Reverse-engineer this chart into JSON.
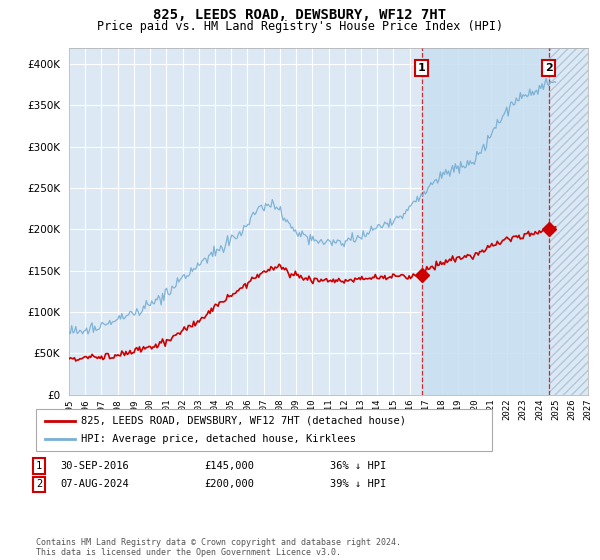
{
  "title": "825, LEEDS ROAD, DEWSBURY, WF12 7HT",
  "subtitle": "Price paid vs. HM Land Registry's House Price Index (HPI)",
  "ylim": [
    0,
    420000
  ],
  "yticks": [
    0,
    50000,
    100000,
    150000,
    200000,
    250000,
    300000,
    350000,
    400000
  ],
  "legend_line1": "825, LEEDS ROAD, DEWSBURY, WF12 7HT (detached house)",
  "legend_line2": "HPI: Average price, detached house, Kirklees",
  "annotation1_label": "1",
  "annotation1_date": "30-SEP-2016",
  "annotation1_price": "£145,000",
  "annotation1_hpi": "36% ↓ HPI",
  "annotation2_label": "2",
  "annotation2_date": "07-AUG-2024",
  "annotation2_price": "£200,000",
  "annotation2_hpi": "39% ↓ HPI",
  "footer": "Contains HM Land Registry data © Crown copyright and database right 2024.\nThis data is licensed under the Open Government Licence v3.0.",
  "line_color_red": "#cc0000",
  "line_color_blue": "#7ab0d4",
  "background_plot": "#dce9f5",
  "grid_color": "#ffffff",
  "annotation_box_color": "#cc0000",
  "sale1_x": 2016.75,
  "sale1_y": 145000,
  "sale2_x": 2024.58,
  "sale2_y": 200000,
  "xlim_left": 1995,
  "xlim_right": 2027
}
